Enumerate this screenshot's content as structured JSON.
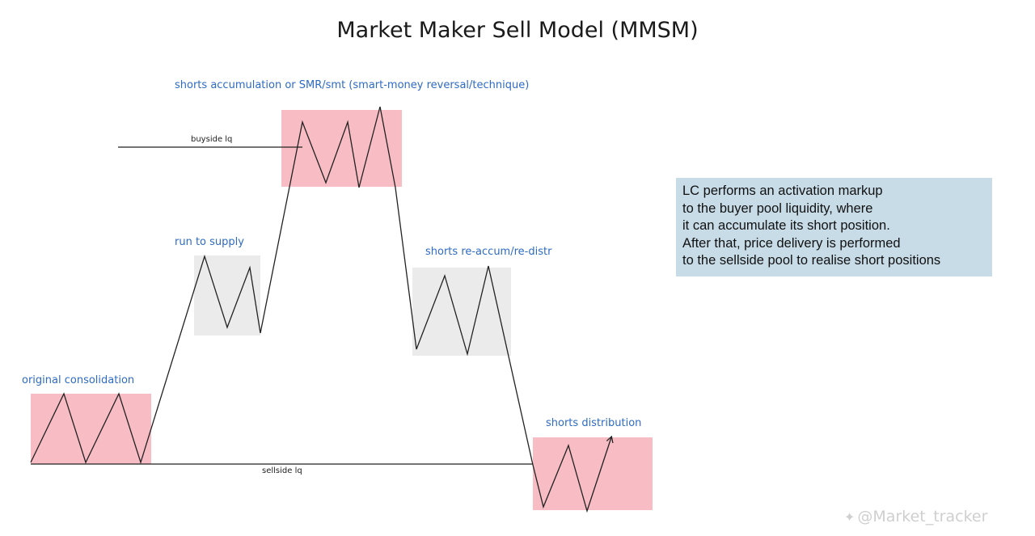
{
  "title": "Market Maker Sell Model (MMSM)",
  "labels": {
    "shorts_accumulation": "shorts accumulation or SMR/smt (smart-money reversal/technique)",
    "buyside": "buyside lq",
    "run_to_supply": "run to supply",
    "shorts_reaccum": "shorts re-accum/re-distr",
    "original_consolidation": "original consolidation",
    "sellside": "sellside lq",
    "shorts_distribution": "shorts distribution"
  },
  "note": {
    "lines": [
      "LC performs an activation markup",
      "to the buyer pool liquidity, where",
      "it can accumulate its short position.",
      "After that, price delivery is performed",
      "to the sellside pool to realise short positions"
    ]
  },
  "watermark": {
    "text": "@Market_tracker",
    "icon": "binance-square-icon"
  },
  "colors": {
    "red_zone": "#f8bcc4",
    "grey_zone": "#ebebeb",
    "label_blue": "#2d6bc4",
    "note_bg": "#c8dce8"
  }
}
